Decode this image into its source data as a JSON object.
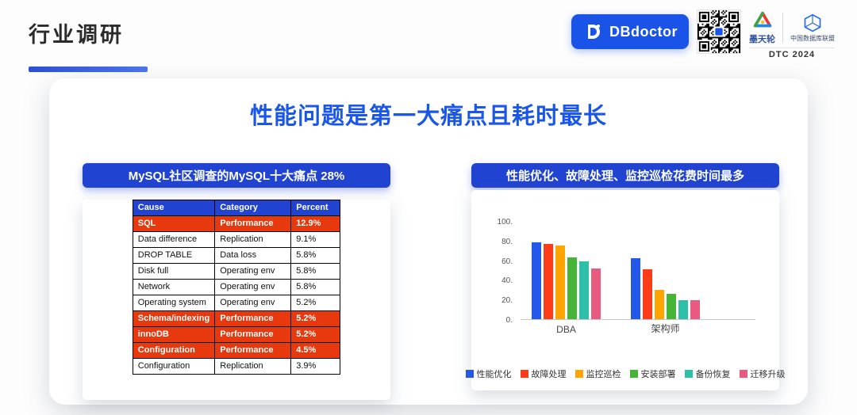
{
  "header": {
    "page_title": "行业调研",
    "brand": {
      "dbdoctor_label": "DBdoctor",
      "motianlun_label": "墨天轮",
      "alliance_label": "中国数据库联盟",
      "dtc_label": "DTC 2024"
    }
  },
  "main": {
    "title": "性能问题是第一大痛点且耗时最长",
    "left_panel": {
      "header": "MySQL社区调查的MySQL十大痛点 28%",
      "table": {
        "columns": [
          "Cause",
          "Category",
          "Percent"
        ],
        "rows": [
          {
            "cause": "SQL",
            "category": "Performance",
            "percent": "12.9%",
            "highlight": true
          },
          {
            "cause": "Data difference",
            "category": "Replication",
            "percent": "9.1%",
            "highlight": false
          },
          {
            "cause": "DROP TABLE",
            "category": "Data loss",
            "percent": "5.8%",
            "highlight": false
          },
          {
            "cause": "Disk full",
            "category": "Operating env",
            "percent": "5.8%",
            "highlight": false
          },
          {
            "cause": "Network",
            "category": "Operating env",
            "percent": "5.8%",
            "highlight": false
          },
          {
            "cause": "Operating system",
            "category": "Operating env",
            "percent": "5.2%",
            "highlight": false
          },
          {
            "cause": "Schema/indexing",
            "category": "Performance",
            "percent": "5.2%",
            "highlight": true
          },
          {
            "cause": "innoDB",
            "category": "Performance",
            "percent": "5.2%",
            "highlight": true
          },
          {
            "cause": "Configuration",
            "category": "Performance",
            "percent": "4.5%",
            "highlight": true
          },
          {
            "cause": "Configuration",
            "category": "Replication",
            "percent": "3.9%",
            "highlight": false
          }
        ]
      }
    },
    "right_panel": {
      "header": "性能优化、故障处理、监控巡检花费时间最多"
    }
  },
  "chart_data": {
    "type": "bar",
    "title": "性能优化、故障处理、监控巡检花费时间最多",
    "categories": [
      "DBA",
      "架构师"
    ],
    "series": [
      {
        "name": "性能优化",
        "color": "#2458e8",
        "values": [
          78,
          62
        ]
      },
      {
        "name": "故障处理",
        "color": "#ff3c1a",
        "values": [
          77,
          51
        ]
      },
      {
        "name": "监控巡检",
        "color": "#ffa400",
        "values": [
          75,
          30
        ]
      },
      {
        "name": "安装部署",
        "color": "#46b437",
        "values": [
          63,
          26
        ]
      },
      {
        "name": "备份恢复",
        "color": "#2dbfa7",
        "values": [
          59,
          19
        ]
      },
      {
        "name": "迁移升级",
        "color": "#e85a80",
        "values": [
          52,
          19
        ]
      }
    ],
    "xlabel": "",
    "ylabel": "",
    "ylim": [
      0,
      100
    ],
    "yticks": [
      "100.",
      "80.",
      "60.",
      "40.",
      "20.",
      "0."
    ],
    "grid": false,
    "legend_position": "bottom"
  }
}
